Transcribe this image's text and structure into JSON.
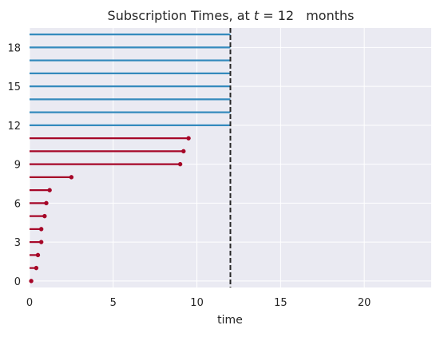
{
  "chart_data": {
    "type": "lifelines",
    "title_parts": {
      "prefix": "Subscription Times, at ",
      "variable": "t",
      "equals": " = 12",
      "suffix": "months"
    },
    "xlabel": "time",
    "ylabel": "",
    "xlim": [
      0,
      24
    ],
    "ylim": [
      -0.5,
      19.5
    ],
    "x_ticks": [
      0,
      5,
      10,
      15,
      20
    ],
    "y_ticks": [
      0,
      3,
      6,
      9,
      12,
      15,
      18
    ],
    "grid": true,
    "observation_time": 12,
    "observed_color": "#A60628",
    "censored_color": "#348ABD",
    "background_color": "#EAEAF2",
    "series": [
      {
        "index": 0,
        "start": 0,
        "end": 0.1,
        "observed": true
      },
      {
        "index": 1,
        "start": 0,
        "end": 0.4,
        "observed": true
      },
      {
        "index": 2,
        "start": 0,
        "end": 0.5,
        "observed": true
      },
      {
        "index": 3,
        "start": 0,
        "end": 0.7,
        "observed": true
      },
      {
        "index": 4,
        "start": 0,
        "end": 0.7,
        "observed": true
      },
      {
        "index": 5,
        "start": 0,
        "end": 0.9,
        "observed": true
      },
      {
        "index": 6,
        "start": 0,
        "end": 1.0,
        "observed": true
      },
      {
        "index": 7,
        "start": 0,
        "end": 1.2,
        "observed": true
      },
      {
        "index": 8,
        "start": 0,
        "end": 2.5,
        "observed": true
      },
      {
        "index": 9,
        "start": 0,
        "end": 9.0,
        "observed": true
      },
      {
        "index": 10,
        "start": 0,
        "end": 9.2,
        "observed": true
      },
      {
        "index": 11,
        "start": 0,
        "end": 9.5,
        "observed": true
      },
      {
        "index": 12,
        "start": 0,
        "end": 12,
        "observed": false
      },
      {
        "index": 13,
        "start": 0,
        "end": 12,
        "observed": false
      },
      {
        "index": 14,
        "start": 0,
        "end": 12,
        "observed": false
      },
      {
        "index": 15,
        "start": 0,
        "end": 12,
        "observed": false
      },
      {
        "index": 16,
        "start": 0,
        "end": 12,
        "observed": false
      },
      {
        "index": 17,
        "start": 0,
        "end": 12,
        "observed": false
      },
      {
        "index": 18,
        "start": 0,
        "end": 12,
        "observed": false
      },
      {
        "index": 19,
        "start": 0,
        "end": 12,
        "observed": false
      }
    ]
  }
}
